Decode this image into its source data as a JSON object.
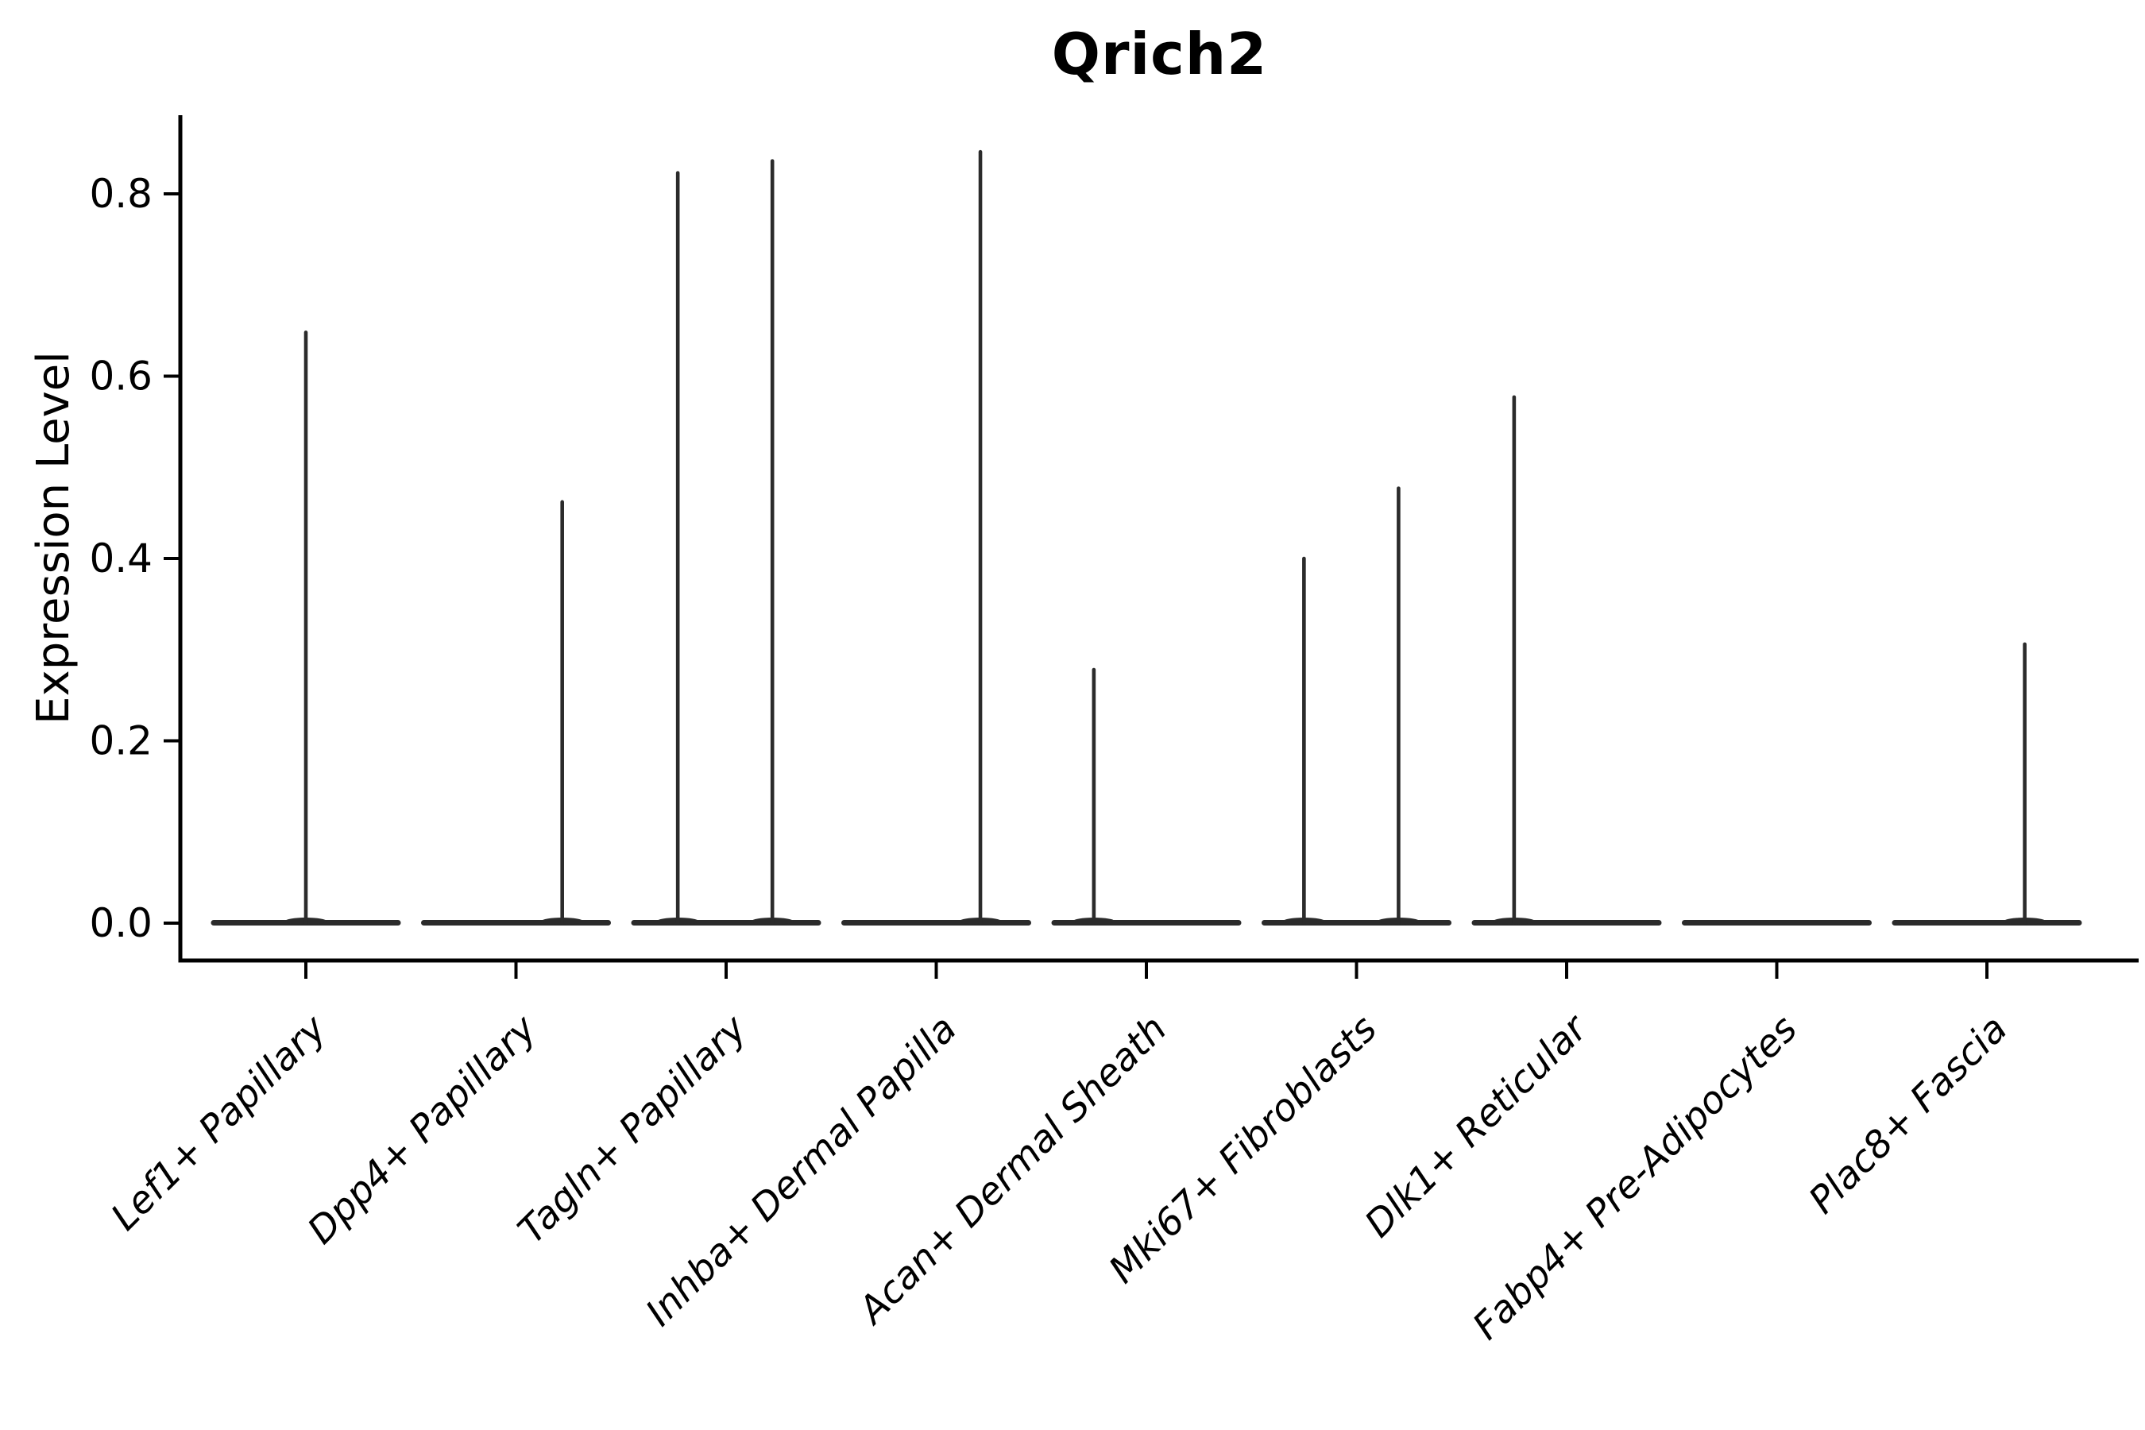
{
  "title": "Qrich2",
  "ylabel": "Expression Level",
  "colors": {
    "violin": "#2b2b2b",
    "axis": "#000000",
    "text": "#000000",
    "background": "#ffffff"
  },
  "ytick_labels": [
    "0.0",
    "0.2",
    "0.4",
    "0.6",
    "0.8"
  ],
  "chart_data": {
    "type": "violin",
    "title": "Qrich2",
    "xlabel": "",
    "ylabel": "Expression Level",
    "ylim": [
      -0.041,
      0.886
    ],
    "yticks": [
      0.0,
      0.2,
      0.4,
      0.6,
      0.8
    ],
    "grid": false,
    "legend": false,
    "categories": [
      "Lef1+ Papillary",
      "Dpp4+ Papillary",
      "Tagln+ Papillary",
      "Inhba+ Dermal Papilla",
      "Acan+ Dermal Sheath",
      "Mki67+ Fibroblasts",
      "Dlk1+ Reticular",
      "Fabp4+ Pre-Adipocytes",
      "Plac8+ Fascia"
    ],
    "violins": [
      {
        "category": "Lef1+ Papillary",
        "baseline_value": 0.0,
        "spikes": [
          {
            "offset_frac": 0.0,
            "max": 0.65
          }
        ]
      },
      {
        "category": "Dpp4+ Papillary",
        "baseline_value": 0.0,
        "spikes": [
          {
            "offset_frac": 0.22,
            "max": 0.464
          }
        ]
      },
      {
        "category": "Tagln+ Papillary",
        "baseline_value": 0.0,
        "spikes": [
          {
            "offset_frac": -0.23,
            "max": 0.825
          },
          {
            "offset_frac": 0.22,
            "max": 0.838
          }
        ]
      },
      {
        "category": "Inhba+ Dermal Papilla",
        "baseline_value": 0.0,
        "spikes": [
          {
            "offset_frac": 0.21,
            "max": 0.848
          }
        ]
      },
      {
        "category": "Acan+ Dermal Sheath",
        "baseline_value": 0.0,
        "spikes": [
          {
            "offset_frac": -0.25,
            "max": 0.28
          }
        ]
      },
      {
        "category": "Mki67+ Fibroblasts",
        "baseline_value": 0.0,
        "spikes": [
          {
            "offset_frac": -0.25,
            "max": 0.402
          },
          {
            "offset_frac": 0.2,
            "max": 0.479
          }
        ]
      },
      {
        "category": "Dlk1+ Reticular",
        "baseline_value": 0.0,
        "spikes": [
          {
            "offset_frac": -0.25,
            "max": 0.579
          }
        ]
      },
      {
        "category": "Fabp4+ Pre-Adipocytes",
        "baseline_value": 0.0,
        "spikes": []
      },
      {
        "category": "Plac8+ Fascia",
        "baseline_value": 0.0,
        "spikes": [
          {
            "offset_frac": 0.18,
            "max": 0.308
          }
        ]
      }
    ]
  }
}
